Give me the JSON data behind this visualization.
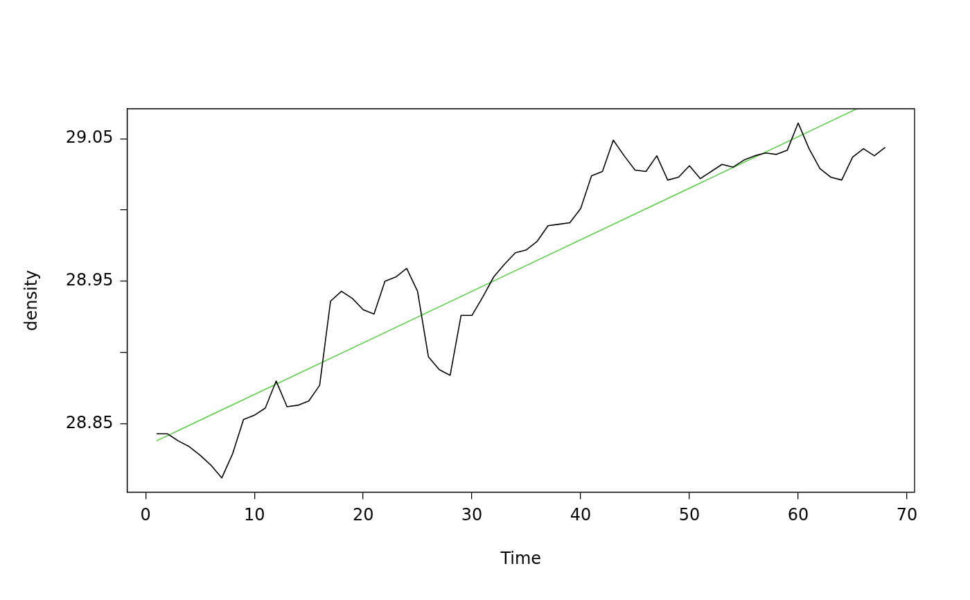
{
  "chart_data": {
    "type": "line",
    "xlabel": "Time",
    "ylabel": "density",
    "x": [
      1,
      2,
      3,
      4,
      5,
      6,
      7,
      8,
      9,
      10,
      11,
      12,
      13,
      14,
      15,
      16,
      17,
      18,
      19,
      20,
      21,
      22,
      23,
      24,
      25,
      26,
      27,
      28,
      29,
      30,
      31,
      32,
      33,
      34,
      35,
      36,
      37,
      38,
      39,
      40,
      41,
      42,
      43,
      44,
      45,
      46,
      47,
      48,
      49,
      50,
      51,
      52,
      53,
      54,
      55,
      56,
      57,
      58,
      59,
      60,
      61,
      62,
      63,
      64,
      65,
      66,
      67,
      68
    ],
    "series": [
      {
        "color": "#000000",
        "values": [
          28.843,
          28.843,
          28.838,
          28.834,
          28.828,
          28.821,
          28.812,
          28.829,
          28.853,
          28.856,
          28.861,
          28.88,
          28.862,
          28.863,
          28.866,
          28.877,
          28.936,
          28.943,
          28.938,
          28.93,
          28.927,
          28.95,
          28.953,
          28.959,
          28.943,
          28.897,
          28.888,
          28.884,
          28.926,
          28.926,
          28.939,
          28.953,
          28.962,
          28.97,
          28.972,
          28.978,
          28.989,
          28.99,
          28.991,
          29.001,
          29.024,
          29.027,
          29.049,
          29.038,
          29.028,
          29.027,
          29.038,
          29.021,
          29.023,
          29.031,
          29.022,
          29.027,
          29.032,
          29.03,
          29.035,
          29.038,
          29.04,
          29.039,
          29.042,
          29.061,
          29.043,
          29.029,
          29.023,
          29.021,
          29.037,
          29.043,
          29.038,
          29.044
        ]
      },
      {
        "type": "line",
        "color": "#61d04f",
        "x": [
          1,
          65.4
        ],
        "values": [
          28.838,
          29.071
        ]
      }
    ],
    "xlim": [
      -1.7,
      70.7
    ],
    "ylim": [
      28.802,
      29.071
    ],
    "xticks": [
      0,
      10,
      20,
      30,
      40,
      50,
      60,
      70
    ],
    "yticks": [
      28.85,
      {
        "value": 28.9,
        "label": null
      },
      28.95,
      {
        "value": 29.0,
        "label": null
      },
      29.05
    ],
    "grid": false,
    "legend": false,
    "marker": "none",
    "line_style": "solid"
  }
}
